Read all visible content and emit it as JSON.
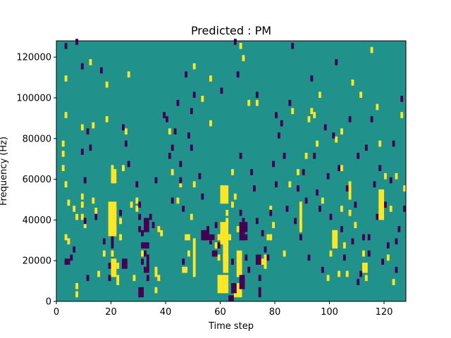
{
  "chart_data": {
    "type": "heatmap",
    "title": "Predicted : PM",
    "xlabel": "Time step",
    "ylabel": "Frequency (Hz)",
    "xlim": [
      0,
      128
    ],
    "ylim": [
      0,
      128000
    ],
    "x_ticks": [
      0,
      20,
      40,
      60,
      80,
      100,
      120
    ],
    "y_ticks": [
      0,
      20000,
      40000,
      60000,
      80000,
      100000,
      120000
    ],
    "x_tick_labels": [
      "0",
      "20",
      "40",
      "60",
      "80",
      "100",
      "120"
    ],
    "y_tick_labels": [
      "0",
      "20000",
      "40000",
      "60000",
      "80000",
      "100000",
      "120000"
    ],
    "grid": false,
    "colormap": {
      "low": "#440154",
      "mid": "#21918c",
      "high": "#fde725"
    },
    "background_value": 0.5,
    "cell_size_hz": 1000,
    "cells": {
      "high": [
        [
          7,
          2
        ],
        [
          7,
          6
        ],
        [
          6,
          44
        ],
        [
          7,
          40
        ],
        [
          2,
          71
        ],
        [
          2,
          76
        ],
        [
          3,
          56
        ],
        [
          2,
          64
        ],
        [
          3,
          90
        ],
        [
          3,
          30
        ],
        [
          4,
          28
        ],
        [
          4,
          47
        ],
        [
          3,
          108
        ],
        [
          9,
          40
        ],
        [
          9,
          46
        ],
        [
          9,
          50
        ],
        [
          10,
          36
        ],
        [
          9,
          84
        ],
        [
          13,
          85
        ],
        [
          12,
          116
        ],
        [
          13,
          48
        ],
        [
          14,
          43
        ],
        [
          15,
          12
        ],
        [
          17,
          22
        ],
        [
          18,
          88
        ],
        [
          18,
          105
        ],
        [
          20,
          14
        ],
        [
          20,
          22
        ],
        [
          20,
          60
        ],
        [
          20,
          64
        ],
        [
          21,
          44
        ],
        [
          21,
          40
        ],
        [
          21,
          34
        ],
        [
          22,
          8
        ],
        [
          22,
          10
        ],
        [
          22,
          16
        ],
        [
          23,
          30
        ],
        [
          23,
          38
        ],
        [
          24,
          64
        ],
        [
          25,
          82
        ],
        [
          26,
          110
        ],
        [
          27,
          46
        ],
        [
          28,
          10
        ],
        [
          29,
          44
        ],
        [
          29,
          48
        ],
        [
          31,
          22
        ],
        [
          36,
          4
        ],
        [
          36,
          12
        ],
        [
          36,
          14
        ],
        [
          37,
          10
        ],
        [
          37,
          34
        ],
        [
          38,
          32
        ],
        [
          41,
          82
        ],
        [
          42,
          62
        ],
        [
          44,
          48
        ],
        [
          45,
          56
        ],
        [
          47,
          30
        ],
        [
          48,
          22
        ],
        [
          48,
          30
        ],
        [
          49,
          40
        ],
        [
          50,
          56
        ],
        [
          50,
          114
        ],
        [
          53,
          98
        ],
        [
          56,
          86
        ],
        [
          56,
          108
        ],
        [
          57,
          30
        ],
        [
          58,
          26
        ],
        [
          59,
          30
        ],
        [
          59,
          20
        ],
        [
          60,
          54
        ],
        [
          61,
          10
        ],
        [
          61,
          20
        ],
        [
          62,
          38
        ],
        [
          62,
          42
        ],
        [
          63,
          30
        ],
        [
          64,
          46
        ],
        [
          64,
          62
        ],
        [
          65,
          50
        ],
        [
          66,
          34
        ],
        [
          67,
          124
        ],
        [
          68,
          118
        ],
        [
          70,
          96
        ],
        [
          73,
          96
        ],
        [
          75,
          18
        ],
        [
          77,
          30
        ],
        [
          78,
          30
        ],
        [
          78,
          44
        ],
        [
          79,
          36
        ],
        [
          83,
          22
        ],
        [
          85,
          56
        ],
        [
          86,
          92
        ],
        [
          88,
          62
        ],
        [
          89,
          36
        ],
        [
          91,
          70
        ],
        [
          92,
          88
        ],
        [
          93,
          92
        ],
        [
          94,
          90
        ],
        [
          95,
          76
        ],
        [
          96,
          100
        ],
        [
          97,
          48
        ],
        [
          99,
          10
        ],
        [
          100,
          22
        ],
        [
          101,
          28
        ],
        [
          101,
          32
        ],
        [
          102,
          78
        ],
        [
          103,
          12
        ],
        [
          104,
          64
        ],
        [
          104,
          82
        ],
        [
          104,
          44
        ],
        [
          105,
          26
        ],
        [
          106,
          12
        ],
        [
          107,
          42
        ],
        [
          108,
          106
        ],
        [
          109,
          36
        ],
        [
          111,
          100
        ],
        [
          112,
          22
        ],
        [
          113,
          10
        ],
        [
          115,
          122
        ],
        [
          117,
          94
        ],
        [
          118,
          76
        ],
        [
          120,
          60
        ],
        [
          121,
          20
        ],
        [
          122,
          44
        ],
        [
          123,
          8
        ],
        [
          124,
          60
        ],
        [
          126,
          90
        ],
        [
          127,
          54
        ]
      ],
      "high_blocks": [
        [
          20,
          58,
          21,
          64
        ],
        [
          20,
          12,
          21,
          20
        ],
        [
          19,
          32,
          21,
          48
        ],
        [
          59,
          4,
          62,
          12
        ],
        [
          61,
          14,
          62,
          22
        ],
        [
          60,
          28,
          62,
          38
        ],
        [
          60,
          48,
          62,
          56
        ],
        [
          61,
          20,
          62,
          28
        ],
        [
          65,
          2,
          67,
          8
        ],
        [
          66,
          12,
          67,
          24
        ],
        [
          50,
          12,
          50,
          30
        ],
        [
          46,
          14,
          47,
          16
        ],
        [
          55,
          30,
          57,
          32
        ],
        [
          76,
          16,
          76,
          22
        ],
        [
          101,
          26,
          102,
          34
        ],
        [
          89,
          34,
          89,
          48
        ],
        [
          107,
          50,
          107,
          58
        ],
        [
          112,
          14,
          113,
          18
        ],
        [
          118,
          40,
          119,
          54
        ]
      ],
      "low": [
        [
          3,
          124
        ],
        [
          7,
          126
        ],
        [
          9,
          114
        ],
        [
          11,
          82
        ],
        [
          12,
          74
        ],
        [
          10,
          38
        ],
        [
          9,
          72
        ],
        [
          10,
          58
        ],
        [
          3,
          18
        ],
        [
          4,
          18
        ],
        [
          5,
          20
        ],
        [
          6,
          24
        ],
        [
          11,
          10
        ],
        [
          14,
          40
        ],
        [
          16,
          112
        ],
        [
          17,
          28
        ],
        [
          19,
          16
        ],
        [
          19,
          10
        ],
        [
          20,
          30
        ],
        [
          23,
          42
        ],
        [
          24,
          84
        ],
        [
          25,
          76
        ],
        [
          26,
          66
        ],
        [
          29,
          56
        ],
        [
          30,
          46
        ],
        [
          30,
          40
        ],
        [
          30,
          34
        ],
        [
          31,
          32
        ],
        [
          31,
          18
        ],
        [
          32,
          22
        ],
        [
          32,
          14
        ],
        [
          33,
          10
        ],
        [
          34,
          40
        ],
        [
          35,
          36
        ],
        [
          36,
          58
        ],
        [
          39,
          90
        ],
        [
          40,
          88
        ],
        [
          41,
          70
        ],
        [
          42,
          74
        ],
        [
          42,
          48
        ],
        [
          43,
          82
        ],
        [
          44,
          96
        ],
        [
          45,
          66
        ],
        [
          45,
          58
        ],
        [
          46,
          18
        ],
        [
          46,
          44
        ],
        [
          47,
          110
        ],
        [
          48,
          80
        ],
        [
          49,
          74
        ],
        [
          49,
          92
        ],
        [
          50,
          100
        ],
        [
          52,
          60
        ],
        [
          53,
          50
        ],
        [
          54,
          30
        ],
        [
          55,
          34
        ],
        [
          56,
          28
        ],
        [
          57,
          22
        ],
        [
          58,
          36
        ],
        [
          59,
          26
        ],
        [
          60,
          102
        ],
        [
          62,
          34
        ],
        [
          64,
          18
        ],
        [
          65,
          126
        ],
        [
          66,
          110
        ],
        [
          67,
          70
        ],
        [
          67,
          42
        ],
        [
          68,
          38
        ],
        [
          69,
          30
        ],
        [
          69,
          20
        ],
        [
          70,
          14
        ],
        [
          71,
          62
        ],
        [
          72,
          54
        ],
        [
          73,
          38
        ],
        [
          73,
          100
        ],
        [
          74,
          10
        ],
        [
          75,
          32
        ],
        [
          76,
          24
        ],
        [
          77,
          20
        ],
        [
          78,
          42
        ],
        [
          79,
          66
        ],
        [
          80,
          56
        ],
        [
          80,
          90
        ],
        [
          81,
          80
        ],
        [
          82,
          86
        ],
        [
          83,
          70
        ],
        [
          84,
          44
        ],
        [
          85,
          96
        ],
        [
          86,
          124
        ],
        [
          87,
          38
        ],
        [
          88,
          54
        ],
        [
          89,
          30
        ],
        [
          90,
          62
        ],
        [
          91,
          48
        ],
        [
          92,
          20
        ],
        [
          93,
          108
        ],
        [
          94,
          70
        ],
        [
          95,
          52
        ],
        [
          96,
          44
        ],
        [
          97,
          14
        ],
        [
          98,
          84
        ],
        [
          99,
          60
        ],
        [
          100,
          40
        ],
        [
          101,
          80
        ],
        [
          102,
          116
        ],
        [
          103,
          64
        ],
        [
          104,
          34
        ],
        [
          105,
          20
        ],
        [
          106,
          54
        ],
        [
          107,
          88
        ],
        [
          108,
          28
        ],
        [
          109,
          46
        ],
        [
          110,
          70
        ],
        [
          111,
          12
        ],
        [
          112,
          30
        ],
        [
          113,
          74
        ],
        [
          114,
          22
        ],
        [
          115,
          88
        ],
        [
          116,
          56
        ],
        [
          117,
          40
        ],
        [
          118,
          64
        ],
        [
          119,
          18
        ],
        [
          120,
          46
        ],
        [
          121,
          26
        ],
        [
          122,
          58
        ],
        [
          123,
          76
        ],
        [
          124,
          28
        ],
        [
          125,
          34
        ],
        [
          126,
          98
        ],
        [
          127,
          44
        ],
        [
          124,
          14
        ],
        [
          114,
          30
        ],
        [
          110,
          8
        ]
      ],
      "low_blocks": [
        [
          30,
          2,
          31,
          6
        ],
        [
          31,
          26,
          33,
          28
        ],
        [
          32,
          34,
          33,
          40
        ],
        [
          33,
          14,
          33,
          22
        ],
        [
          53,
          30,
          55,
          34
        ],
        [
          57,
          22,
          58,
          24
        ],
        [
          67,
          6,
          68,
          12
        ],
        [
          67,
          30,
          68,
          38
        ],
        [
          68,
          34,
          69,
          38
        ],
        [
          73,
          18,
          74,
          22
        ],
        [
          74,
          2,
          74,
          6
        ],
        [
          63,
          0,
          64,
          2
        ],
        [
          64,
          4,
          65,
          8
        ],
        [
          24,
          16,
          25,
          20
        ],
        [
          20,
          26,
          20,
          30
        ],
        [
          56,
          30,
          57,
          32
        ]
      ]
    }
  }
}
